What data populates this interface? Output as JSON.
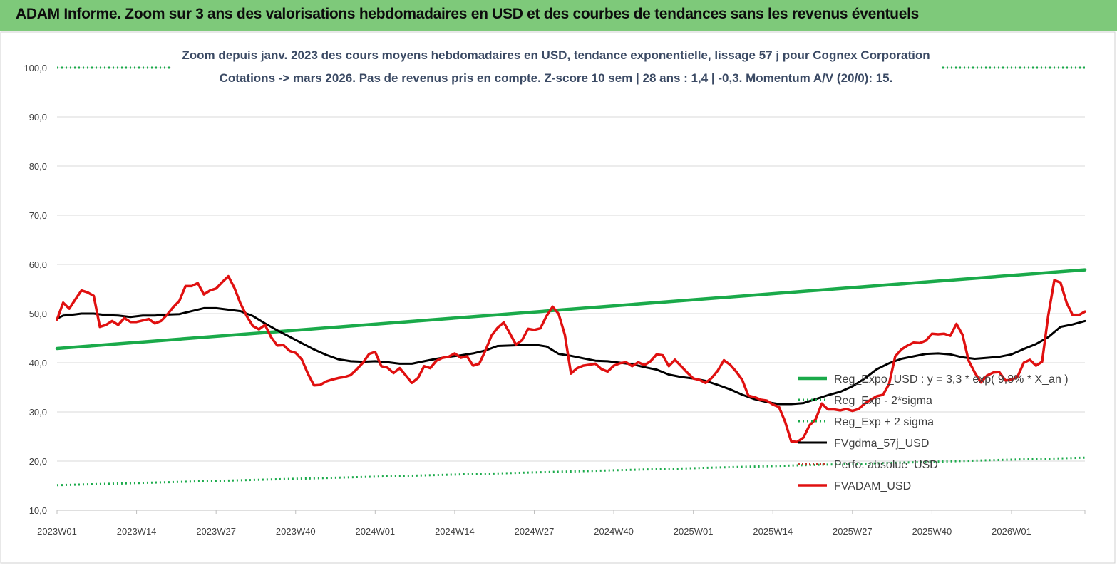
{
  "header": {
    "title": "ADAM Informe. Zoom sur 3 ans des valorisations hebdomadaires en USD et des courbes de tendances sans les revenus éventuels"
  },
  "chart_data": {
    "type": "line",
    "title_line1": "Zoom depuis janv. 2023 des cours moyens hebdomadaires en USD, tendance exponentielle, lissage 57 j pour Cognex Corporation",
    "title_line2": "Cotations -> mars 2026. Pas de revenus pris en compte. Z-score 10 sem | 28 ans : 1,4 | -0,3. Momentum A/V (20/0): 15.",
    "ylim": [
      10,
      100
    ],
    "y_ticks": [
      "10,0",
      "20,0",
      "30,0",
      "40,0",
      "50,0",
      "60,0",
      "70,0",
      "80,0",
      "90,0",
      "100,0"
    ],
    "x_ticks": [
      "2023W01",
      "2023W14",
      "2023W27",
      "2023W40",
      "2024W01",
      "2024W14",
      "2024W27",
      "2024W40",
      "2025W01",
      "2025W14",
      "2025W27",
      "2025W40",
      "2026W01"
    ],
    "x_tick_positions": [
      0,
      13,
      26,
      39,
      52,
      65,
      78,
      91,
      104,
      117,
      130,
      143,
      156
    ],
    "x_range": [
      0,
      168
    ],
    "grid": "horizontal",
    "legend_position": "bottom-right",
    "colors": {
      "reg_expo": "#1aaa4a",
      "fvgdma": "#000000",
      "fvadam": "#e01010",
      "perfo": "#c0392b",
      "header_bg": "#7ec97a"
    },
    "series": [
      {
        "name": "Reg_Expo_USD : y = 3,3 * exp( 9,8% * X_an )",
        "style": "solid-green",
        "x": [
          0,
          168
        ],
        "values": [
          42.9,
          58.9
        ]
      },
      {
        "name": "Reg_Exp - 2*sigma",
        "style": "dotted-green",
        "x": [
          0,
          168
        ],
        "values": [
          15.1,
          20.7
        ]
      },
      {
        "name": "Reg_Exp + 2 sigma",
        "style": "dotted-green",
        "x": [
          0,
          168
        ],
        "values": [
          100.0,
          100.0
        ]
      },
      {
        "name": "FVgdma_57j_USD",
        "style": "solid-black",
        "x": [
          0,
          1,
          2,
          4,
          6,
          8,
          10,
          12,
          14,
          16,
          18,
          20,
          21,
          22,
          24,
          26,
          28,
          30,
          32,
          34,
          36,
          38,
          40,
          42,
          44,
          46,
          48,
          50,
          52,
          54,
          56,
          58,
          60,
          62,
          64,
          66,
          68,
          70,
          72,
          74,
          76,
          78,
          80,
          82,
          84,
          86,
          88,
          90,
          92,
          94,
          96,
          98,
          100,
          102,
          104,
          106,
          108,
          110,
          112,
          114,
          116,
          118,
          120,
          122,
          124,
          126,
          128,
          130,
          132,
          134,
          136,
          138,
          140,
          142,
          144,
          146,
          148,
          150,
          152,
          154,
          156,
          158,
          160,
          162,
          164,
          166,
          168
        ],
        "values": [
          49.0,
          49.6,
          49.7,
          50.0,
          50.0,
          49.7,
          49.6,
          49.3,
          49.6,
          49.6,
          49.8,
          49.9,
          50.2,
          50.5,
          51.1,
          51.1,
          50.8,
          50.5,
          49.5,
          48.0,
          46.6,
          45.3,
          44.0,
          42.7,
          41.6,
          40.7,
          40.3,
          40.2,
          40.3,
          40.1,
          39.8,
          39.8,
          40.3,
          40.8,
          41.2,
          41.5,
          41.9,
          42.5,
          43.4,
          43.5,
          43.6,
          43.7,
          43.3,
          41.8,
          41.4,
          40.9,
          40.4,
          40.3,
          40.0,
          39.7,
          39.1,
          38.6,
          37.6,
          37.1,
          36.8,
          36.3,
          35.5,
          34.6,
          33.5,
          32.6,
          32.0,
          31.6,
          31.6,
          31.8,
          32.6,
          33.4,
          34.1,
          35.2,
          36.8,
          38.7,
          39.9,
          40.8,
          41.3,
          41.8,
          41.9,
          41.7,
          41.1,
          40.8,
          41.0,
          41.2,
          41.7,
          42.8,
          43.8,
          45.2,
          47.3,
          47.8,
          48.5
        ]
      },
      {
        "name": "Perfo. absolue_USD",
        "style": "dotted-red",
        "x": [],
        "values": []
      },
      {
        "name": "FVADAM_USD",
        "style": "solid-red",
        "x": [
          0,
          1,
          2,
          3,
          4,
          5,
          6,
          7,
          8,
          9,
          10,
          11,
          12,
          13,
          14,
          15,
          16,
          17,
          18,
          19,
          20,
          21,
          22,
          23,
          24,
          25,
          26,
          27,
          28,
          29,
          30,
          31,
          32,
          33,
          34,
          35,
          36,
          37,
          38,
          39,
          40,
          41,
          42,
          43,
          44,
          45,
          46,
          47,
          48,
          49,
          50,
          51,
          52,
          53,
          54,
          55,
          56,
          57,
          58,
          59,
          60,
          61,
          62,
          63,
          64,
          65,
          66,
          67,
          68,
          69,
          70,
          71,
          72,
          73,
          74,
          75,
          76,
          77,
          78,
          79,
          80,
          81,
          82,
          83,
          84,
          85,
          86,
          87,
          88,
          89,
          90,
          91,
          92,
          93,
          94,
          95,
          96,
          97,
          98,
          99,
          100,
          101,
          102,
          103,
          104,
          105,
          106,
          107,
          108,
          109,
          110,
          111,
          112,
          113,
          114,
          115,
          116,
          117,
          118,
          119,
          120,
          121,
          122,
          123,
          124,
          125,
          126,
          127,
          128,
          129,
          130,
          131,
          132,
          133,
          134,
          135,
          136,
          137,
          138,
          139,
          140,
          141,
          142,
          143,
          144,
          145,
          146,
          147,
          148,
          149,
          150,
          151,
          152,
          153,
          154,
          155,
          156,
          157,
          158,
          159,
          160,
          161,
          162,
          163,
          164,
          165,
          166,
          167,
          168
        ],
        "values": [
          48.8,
          52.2,
          51.0,
          52.9,
          54.7,
          54.3,
          53.6,
          47.3,
          47.7,
          48.5,
          47.7,
          49.1,
          48.3,
          48.3,
          48.6,
          48.9,
          48.0,
          48.5,
          49.8,
          51.3,
          52.6,
          55.6,
          55.6,
          56.2,
          53.9,
          54.7,
          55.1,
          56.4,
          57.6,
          55.2,
          52.0,
          49.5,
          47.5,
          46.8,
          47.7,
          45.2,
          43.5,
          43.6,
          42.4,
          42.0,
          40.7,
          37.8,
          35.4,
          35.5,
          36.2,
          36.6,
          36.9,
          37.1,
          37.5,
          38.7,
          40.0,
          41.8,
          42.2,
          39.3,
          39.0,
          37.9,
          38.9,
          37.4,
          35.9,
          36.9,
          39.3,
          38.9,
          40.4,
          41.0,
          41.2,
          41.9,
          41.0,
          41.3,
          39.4,
          39.8,
          42.4,
          45.5,
          47.1,
          48.2,
          46.0,
          43.7,
          44.6,
          46.9,
          46.7,
          47.0,
          49.5,
          51.4,
          49.9,
          45.7,
          37.8,
          38.9,
          39.4,
          39.6,
          39.8,
          38.7,
          38.2,
          39.4,
          39.9,
          40.1,
          39.3,
          40.1,
          39.5,
          40.3,
          41.7,
          41.5,
          39.3,
          40.6,
          39.3,
          38.0,
          36.8,
          36.5,
          35.9,
          36.9,
          38.4,
          40.5,
          39.6,
          38.2,
          36.5,
          33.3,
          33.0,
          32.5,
          32.3,
          31.5,
          31.0,
          28.0,
          24.0,
          23.9,
          24.8,
          27.3,
          28.5,
          31.7,
          30.5,
          30.5,
          30.3,
          30.6,
          30.2,
          30.6,
          31.7,
          32.5,
          33.2,
          33.5,
          35.7,
          41.3,
          42.7,
          43.5,
          44.1,
          44.0,
          44.5,
          45.9,
          45.8,
          45.9,
          45.5,
          47.9,
          45.7,
          40.4,
          38.0,
          36.0,
          37.4,
          38.0,
          38.1,
          36.4,
          36.5,
          37.2,
          40.0,
          40.6,
          39.4,
          40.2,
          49.6,
          56.8,
          56.3,
          52.2,
          49.7,
          49.7,
          50.4
        ]
      }
    ]
  }
}
